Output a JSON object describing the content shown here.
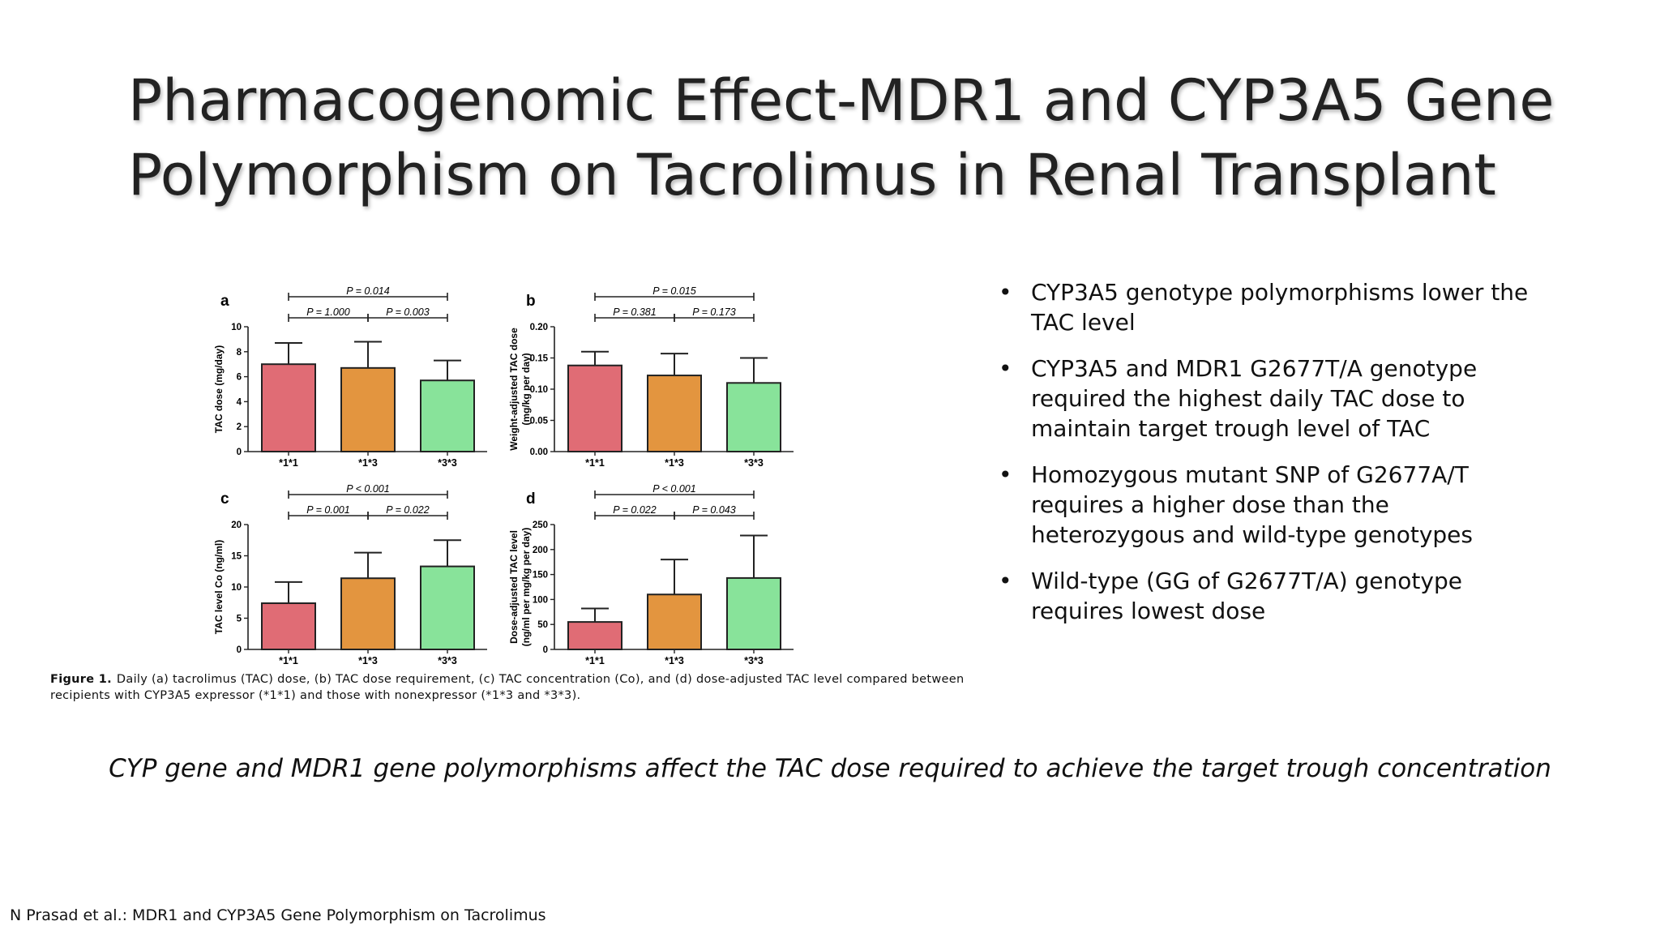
{
  "slide": {
    "title_line1": "Pharmacogenomic Effect-MDR1 and CYP3A5 Gene",
    "title_line2": "Polymorphism on Tacrolimus in Renal Transplant",
    "bullets": [
      "CYP3A5 genotype polymorphisms lower the TAC level",
      "CYP3A5 and MDR1 G2677T/A genotype required the highest daily TAC dose to maintain target trough level of TAC",
      "Homozygous mutant SNP of G2677A/T requires a higher dose than the heterozygous and wild-type genotypes",
      "Wild-type (GG of G2677T/A) genotype requires lowest dose"
    ],
    "bullet_glyph": "•",
    "conclusion": "CYP gene and MDR1 gene polymorphisms affect the TAC dose required to achieve the target trough concentration",
    "citation": "N Prasad et al.: MDR1 and CYP3A5 Gene Polymorphism on Tacrolimus",
    "caption_label": "Figure 1.",
    "caption_text": "Daily (a) tacrolimus (TAC) dose, (b) TAC dose requirement, (c) TAC concentration (Co), and (d) dose-adjusted TAC level compared between recipients with CYP3A5 expressor (*1*1) and those with nonexpressor (*1*3 and *3*3)."
  },
  "colors": {
    "bar_1_1": "#e06c75",
    "bar_1_3": "#e3953f",
    "bar_3_3": "#88e39a",
    "outline": "#222222"
  },
  "chart_data": [
    {
      "type": "bar",
      "panel": "a",
      "categories": [
        "*1*1",
        "*1*3",
        "*3*3"
      ],
      "values": [
        7.0,
        6.7,
        5.7
      ],
      "errors": [
        1.7,
        2.1,
        1.6
      ],
      "ylabel": "TAC dose (mg/day)",
      "ylim": [
        0,
        10
      ],
      "yticks": [
        0,
        2,
        4,
        6,
        8,
        10
      ],
      "tick_labels": [
        "0",
        "2",
        "4",
        "6",
        "8",
        "10"
      ],
      "comparisons": [
        {
          "from": 0,
          "to": 1,
          "label": "P = 1.000"
        },
        {
          "from": 1,
          "to": 2,
          "label": "P = 0.003"
        },
        {
          "from": 0,
          "to": 2,
          "label": "P = 0.014"
        }
      ]
    },
    {
      "type": "bar",
      "panel": "b",
      "categories": [
        "*1*1",
        "*1*3",
        "*3*3"
      ],
      "values": [
        0.138,
        0.122,
        0.11
      ],
      "errors": [
        0.022,
        0.035,
        0.04
      ],
      "ylabel": "Weight-adjusted TAC dose",
      "ylabel2": "(mg/kg per day)",
      "ylim": [
        0,
        0.2
      ],
      "yticks": [
        0,
        0.05,
        0.1,
        0.15,
        0.2
      ],
      "tick_labels": [
        "0.00",
        "0.05",
        "0.10",
        "0.15",
        "0.20"
      ],
      "comparisons": [
        {
          "from": 0,
          "to": 1,
          "label": "P = 0.381"
        },
        {
          "from": 1,
          "to": 2,
          "label": "P = 0.173"
        },
        {
          "from": 0,
          "to": 2,
          "label": "P = 0.015"
        }
      ]
    },
    {
      "type": "bar",
      "panel": "c",
      "categories": [
        "*1*1",
        "*1*3",
        "*3*3"
      ],
      "values": [
        7.4,
        11.4,
        13.3
      ],
      "errors": [
        3.4,
        4.1,
        4.2
      ],
      "ylabel": "TAC level Co (ng/ml)",
      "ylim": [
        0,
        20
      ],
      "yticks": [
        0,
        5,
        10,
        15,
        20
      ],
      "tick_labels": [
        "0",
        "5",
        "10",
        "15",
        "20"
      ],
      "comparisons": [
        {
          "from": 0,
          "to": 1,
          "label": "P = 0.001"
        },
        {
          "from": 1,
          "to": 2,
          "label": "P = 0.022"
        },
        {
          "from": 0,
          "to": 2,
          "label": "P < 0.001"
        }
      ]
    },
    {
      "type": "bar",
      "panel": "d",
      "categories": [
        "*1*1",
        "*1*3",
        "*3*3"
      ],
      "values": [
        55,
        110,
        143
      ],
      "errors": [
        27,
        70,
        85
      ],
      "ylabel": "Dose-adjusted TAC level",
      "ylabel2": "(ng/ml per mg/kg per day)",
      "ylim": [
        0,
        250
      ],
      "yticks": [
        0,
        50,
        100,
        150,
        200,
        250
      ],
      "tick_labels": [
        "0",
        "50",
        "100",
        "150",
        "200",
        "250"
      ],
      "comparisons": [
        {
          "from": 0,
          "to": 1,
          "label": "P = 0.022"
        },
        {
          "from": 1,
          "to": 2,
          "label": "P = 0.043"
        },
        {
          "from": 0,
          "to": 2,
          "label": "P < 0.001"
        }
      ]
    }
  ]
}
